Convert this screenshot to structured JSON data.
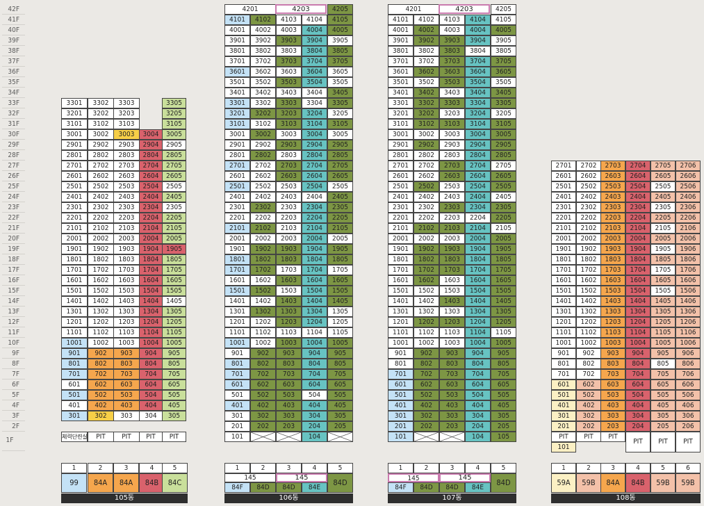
{
  "floor_labels": [
    "42F",
    "41F",
    "40F",
    "39F",
    "38F",
    "37F",
    "36F",
    "35F",
    "34F",
    "33F",
    "32F",
    "31F",
    "30F",
    "29F",
    "28F",
    "27F",
    "26F",
    "25F",
    "24F",
    "23F",
    "22F",
    "21F",
    "20F",
    "19F",
    "18F",
    "17F",
    "16F",
    "15F",
    "14F",
    "13F",
    "12F",
    "11F",
    "10F",
    "9F",
    "8F",
    "7F",
    "6F",
    "5F",
    "4F",
    "3F",
    "2F",
    "1F"
  ],
  "colors": {
    "W": "#ffffff",
    "B": "#c4e2f6",
    "O": "#f5a64d",
    "R": "#d9626c",
    "G": "#7d9644",
    "T": "#67c3c2",
    "L": "#c9df9b",
    "Y": "#f7cf47",
    "P": "#f3c1a9",
    "C": "#fbf0c4"
  },
  "buildings": [
    {
      "name": "105동",
      "legend_numbers": [
        "1",
        "2",
        "3",
        "4",
        "5"
      ],
      "legend_types": [
        "99",
        "84A",
        "84A",
        "84B",
        "84C"
      ],
      "legend_colors": [
        "B",
        "O",
        "O",
        "R",
        "L"
      ]
    },
    {
      "name": "106동",
      "legend_numbers": [
        "1",
        "2",
        "3",
        "4",
        "5"
      ],
      "legend_merged_labels": [
        "145",
        "145"
      ],
      "legend_types": [
        "84F",
        "84D",
        "84D",
        "84E",
        "84D"
      ],
      "legend_colors": [
        "B",
        "G",
        "G",
        "T",
        "G"
      ]
    },
    {
      "name": "107동",
      "legend_numbers": [
        "1",
        "2",
        "3",
        "4",
        "5"
      ],
      "legend_merged_labels": [
        "145",
        "145"
      ],
      "legend_types": [
        "84F",
        "84D",
        "84D",
        "84E",
        "84D"
      ],
      "legend_colors": [
        "B",
        "G",
        "G",
        "T",
        "G"
      ]
    },
    {
      "name": "108동",
      "legend_numbers": [
        "1",
        "2",
        "3",
        "4",
        "5",
        "6"
      ],
      "legend_types": [
        "59A",
        "59B",
        "84A",
        "84B",
        "59B",
        "59B"
      ],
      "legend_colors": [
        "C",
        "P",
        "O",
        "R",
        "P",
        "P"
      ]
    }
  ],
  "labels": {
    "pit": "PIT",
    "fitness": "체력단련실",
    "unit_101": "101",
    "unit_104": "104",
    "unit_105": "105",
    "b106_top": [
      "4201",
      "4203",
      "4205"
    ],
    "b107_top": [
      "4201",
      "4203",
      "4205"
    ]
  },
  "grid_105": {
    "first_floor": 33,
    "rows": [
      [
        "W",
        "W",
        "W",
        "_",
        "L"
      ],
      [
        "W",
        "W",
        "W",
        "_",
        "L"
      ],
      [
        "W",
        "W",
        "W",
        "_",
        "L"
      ],
      [
        "W",
        "W",
        "Y",
        "R",
        "L"
      ],
      [
        "W",
        "W",
        "W",
        "R",
        "W"
      ],
      [
        "W",
        "W",
        "W",
        "R",
        "L"
      ],
      [
        "W",
        "W",
        "W",
        "R",
        "L"
      ],
      [
        "W",
        "W",
        "W",
        "R",
        "L"
      ],
      [
        "W",
        "W",
        "W",
        "R",
        "W"
      ],
      [
        "W",
        "W",
        "W",
        "R",
        "L"
      ],
      [
        "W",
        "W",
        "W",
        "R",
        "W"
      ],
      [
        "W",
        "W",
        "W",
        "R",
        "L"
      ],
      [
        "W",
        "W",
        "W",
        "R",
        "L"
      ],
      [
        "W",
        "W",
        "W",
        "R",
        "L"
      ],
      [
        "W",
        "W",
        "W",
        "R",
        "R"
      ],
      [
        "W",
        "W",
        "W",
        "R",
        "L"
      ],
      [
        "W",
        "W",
        "W",
        "R",
        "L"
      ],
      [
        "W",
        "W",
        "W",
        "R",
        "L"
      ],
      [
        "W",
        "W",
        "W",
        "R",
        "L"
      ],
      [
        "W",
        "W",
        "W",
        "R",
        "W"
      ],
      [
        "W",
        "W",
        "W",
        "R",
        "L"
      ],
      [
        "W",
        "W",
        "W",
        "R",
        "L"
      ],
      [
        "W",
        "W",
        "W",
        "R",
        "L"
      ],
      [
        "B",
        "W",
        "W",
        "R",
        "L"
      ],
      [
        "B",
        "O",
        "O",
        "R",
        "L"
      ],
      [
        "B",
        "O",
        "O",
        "R",
        "L"
      ],
      [
        "B",
        "O",
        "O",
        "R",
        "L"
      ],
      [
        "W",
        "O",
        "O",
        "R",
        "L"
      ],
      [
        "B",
        "O",
        "O",
        "R",
        "L"
      ],
      [
        "W",
        "O",
        "O",
        "R",
        "L"
      ],
      [
        "B",
        "Y",
        "W",
        "W",
        "L"
      ]
    ]
  },
  "grid_106": {
    "first_floor": 41,
    "rows": [
      [
        "B",
        "G",
        "W",
        "W",
        "G"
      ],
      [
        "W",
        "W",
        "W",
        "T",
        "G"
      ],
      [
        "W",
        "W",
        "G",
        "T",
        "W"
      ],
      [
        "W",
        "W",
        "W",
        "T",
        "G"
      ],
      [
        "W",
        "W",
        "G",
        "T",
        "G"
      ],
      [
        "B",
        "W",
        "W",
        "T",
        "W"
      ],
      [
        "W",
        "W",
        "G",
        "T",
        "W"
      ],
      [
        "W",
        "W",
        "W",
        "W",
        "G"
      ],
      [
        "B",
        "W",
        "G",
        "W",
        "G"
      ],
      [
        "B",
        "G",
        "G",
        "T",
        "W"
      ],
      [
        "B",
        "W",
        "G",
        "T",
        "G"
      ],
      [
        "W",
        "G",
        "W",
        "T",
        "W"
      ],
      [
        "W",
        "W",
        "G",
        "T",
        "G"
      ],
      [
        "W",
        "G",
        "W",
        "T",
        "G"
      ],
      [
        "B",
        "W",
        "G",
        "T",
        "G"
      ],
      [
        "W",
        "W",
        "G",
        "T",
        "G"
      ],
      [
        "B",
        "W",
        "W",
        "T",
        "W"
      ],
      [
        "W",
        "W",
        "W",
        "W",
        "G"
      ],
      [
        "W",
        "G",
        "W",
        "T",
        "G"
      ],
      [
        "W",
        "W",
        "W",
        "T",
        "G"
      ],
      [
        "B",
        "G",
        "W",
        "T",
        "G"
      ],
      [
        "W",
        "W",
        "W",
        "T",
        "W"
      ],
      [
        "W",
        "G",
        "G",
        "T",
        "G"
      ],
      [
        "B",
        "G",
        "G",
        "T",
        "G"
      ],
      [
        "B",
        "G",
        "W",
        "T",
        "W"
      ],
      [
        "W",
        "W",
        "G",
        "T",
        "G"
      ],
      [
        "B",
        "G",
        "W",
        "T",
        "G"
      ],
      [
        "W",
        "W",
        "G",
        "T",
        "G"
      ],
      [
        "W",
        "G",
        "G",
        "T",
        "W"
      ],
      [
        "W",
        "W",
        "G",
        "T",
        "W"
      ],
      [
        "W",
        "W",
        "W",
        "W",
        "W"
      ],
      [
        "B",
        "W",
        "G",
        "T",
        "G"
      ],
      [
        "W",
        "G",
        "G",
        "T",
        "G"
      ],
      [
        "B",
        "G",
        "G",
        "T",
        "G"
      ],
      [
        "B",
        "G",
        "G",
        "T",
        "G"
      ],
      [
        "B",
        "G",
        "G",
        "T",
        "G"
      ],
      [
        "W",
        "G",
        "G",
        "W",
        "G"
      ],
      [
        "B",
        "G",
        "G",
        "T",
        "G"
      ],
      [
        "W",
        "G",
        "G",
        "T",
        "G"
      ],
      [
        "W",
        "G",
        "G",
        "T",
        "G"
      ]
    ]
  },
  "grid_107": {
    "first_floor": 41,
    "rows": [
      [
        "W",
        "W",
        "W",
        "T",
        "W"
      ],
      [
        "W",
        "G",
        "W",
        "T",
        "G"
      ],
      [
        "W",
        "G",
        "G",
        "T",
        "W"
      ],
      [
        "W",
        "W",
        "G",
        "W",
        "W"
      ],
      [
        "W",
        "W",
        "G",
        "T",
        "G"
      ],
      [
        "W",
        "G",
        "G",
        "T",
        "G"
      ],
      [
        "W",
        "W",
        "G",
        "T",
        "W"
      ],
      [
        "W",
        "G",
        "W",
        "T",
        "G"
      ],
      [
        "W",
        "G",
        "G",
        "T",
        "G"
      ],
      [
        "W",
        "G",
        "W",
        "T",
        "W"
      ],
      [
        "W",
        "G",
        "G",
        "T",
        "G"
      ],
      [
        "W",
        "W",
        "W",
        "T",
        "G"
      ],
      [
        "W",
        "G",
        "W",
        "T",
        "G"
      ],
      [
        "W",
        "W",
        "W",
        "T",
        "G"
      ],
      [
        "W",
        "W",
        "G",
        "T",
        "W"
      ],
      [
        "W",
        "W",
        "G",
        "T",
        "G"
      ],
      [
        "W",
        "G",
        "W",
        "T",
        "G"
      ],
      [
        "W",
        "W",
        "W",
        "T",
        "W"
      ],
      [
        "W",
        "W",
        "G",
        "T",
        "G"
      ],
      [
        "W",
        "W",
        "W",
        "W",
        "G"
      ],
      [
        "W",
        "G",
        "G",
        "T",
        "W"
      ],
      [
        "W",
        "W",
        "W",
        "T",
        "G"
      ],
      [
        "W",
        "G",
        "G",
        "T",
        "G"
      ],
      [
        "W",
        "G",
        "G",
        "T",
        "G"
      ],
      [
        "W",
        "G",
        "G",
        "T",
        "G"
      ],
      [
        "W",
        "G",
        "W",
        "T",
        "G"
      ],
      [
        "W",
        "W",
        "W",
        "T",
        "G"
      ],
      [
        "W",
        "W",
        "G",
        "T",
        "G"
      ],
      [
        "W",
        "W",
        "W",
        "T",
        "G"
      ],
      [
        "W",
        "G",
        "G",
        "T",
        "G"
      ],
      [
        "W",
        "W",
        "W",
        "T",
        "W"
      ],
      [
        "W",
        "W",
        "W",
        "T",
        "G"
      ],
      [
        "W",
        "G",
        "G",
        "T",
        "G"
      ],
      [
        "W",
        "G",
        "G",
        "T",
        "G"
      ],
      [
        "B",
        "G",
        "G",
        "T",
        "G"
      ],
      [
        "B",
        "G",
        "G",
        "T",
        "G"
      ],
      [
        "B",
        "G",
        "G",
        "T",
        "G"
      ],
      [
        "B",
        "G",
        "G",
        "T",
        "G"
      ],
      [
        "B",
        "G",
        "G",
        "T",
        "G"
      ],
      [
        "B",
        "G",
        "G",
        "T",
        "G"
      ]
    ]
  },
  "grid_108": {
    "first_floor": 27,
    "rows": [
      [
        "W",
        "W",
        "O",
        "R",
        "P",
        "P"
      ],
      [
        "W",
        "W",
        "O",
        "R",
        "P",
        "P"
      ],
      [
        "W",
        "W",
        "O",
        "R",
        "W",
        "P"
      ],
      [
        "W",
        "W",
        "O",
        "R",
        "P",
        "P"
      ],
      [
        "W",
        "W",
        "O",
        "R",
        "W",
        "P"
      ],
      [
        "W",
        "W",
        "O",
        "R",
        "P",
        "P"
      ],
      [
        "W",
        "W",
        "O",
        "R",
        "W",
        "P"
      ],
      [
        "W",
        "W",
        "O",
        "R",
        "P",
        "P"
      ],
      [
        "W",
        "W",
        "O",
        "R",
        "W",
        "P"
      ],
      [
        "W",
        "W",
        "O",
        "R",
        "P",
        "P"
      ],
      [
        "W",
        "W",
        "O",
        "R",
        "W",
        "P"
      ],
      [
        "W",
        "W",
        "O",
        "R",
        "P",
        "P"
      ],
      [
        "W",
        "W",
        "O",
        "R",
        "W",
        "P"
      ],
      [
        "W",
        "W",
        "O",
        "R",
        "P",
        "P"
      ],
      [
        "W",
        "W",
        "O",
        "R",
        "P",
        "P"
      ],
      [
        "W",
        "W",
        "O",
        "R",
        "P",
        "P"
      ],
      [
        "W",
        "W",
        "O",
        "R",
        "P",
        "P"
      ],
      [
        "W",
        "W",
        "O",
        "R",
        "P",
        "P"
      ],
      [
        "W",
        "W",
        "O",
        "R",
        "P",
        "P"
      ],
      [
        "W",
        "W",
        "O",
        "R",
        "W",
        "P"
      ],
      [
        "W",
        "W",
        "O",
        "R",
        "P",
        "P"
      ],
      [
        "C",
        "P",
        "O",
        "R",
        "P",
        "P"
      ],
      [
        "C",
        "P",
        "O",
        "R",
        "P",
        "P"
      ],
      [
        "C",
        "P",
        "O",
        "R",
        "P",
        "P"
      ],
      [
        "C",
        "P",
        "O",
        "R",
        "P",
        "P"
      ],
      [
        "C",
        "P",
        "O",
        "R",
        "P",
        "P"
      ]
    ]
  }
}
